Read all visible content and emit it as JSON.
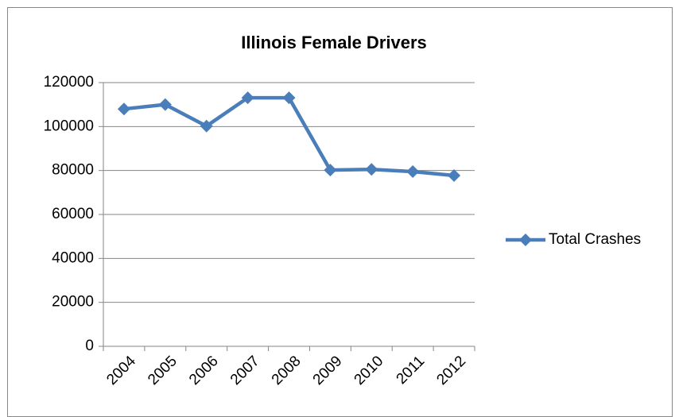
{
  "chart_data": {
    "type": "line",
    "title": "Illinois Female Drivers",
    "categories": [
      "2004",
      "2005",
      "2006",
      "2007",
      "2008",
      "2009",
      "2010",
      "2011",
      "2012"
    ],
    "series": [
      {
        "name": "Total Crashes",
        "color": "#4a7ebb",
        "values": [
          108000,
          110000,
          100200,
          113100,
          113100,
          80200,
          80500,
          79500,
          77700
        ]
      }
    ],
    "ylim": [
      0,
      120000
    ],
    "yticks": [
      0,
      20000,
      40000,
      60000,
      80000,
      100000,
      120000
    ],
    "grid": true,
    "legend": "right"
  }
}
